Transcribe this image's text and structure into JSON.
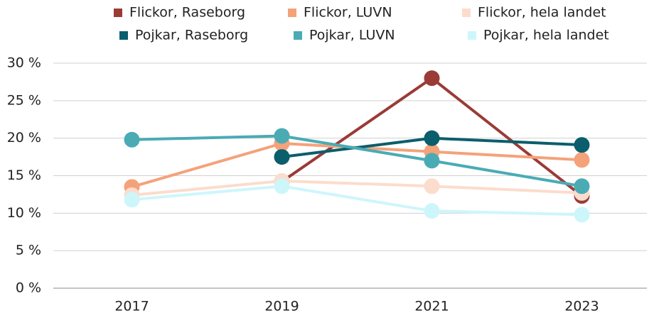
{
  "chart_data": {
    "type": "line",
    "categories": [
      "2017",
      "2019",
      "2021",
      "2023"
    ],
    "series": [
      {
        "name": "Flickor, Raseborg",
        "color": "#9a3b36",
        "values": [
          null,
          14.2,
          28.0,
          12.3
        ]
      },
      {
        "name": "Flickor, LUVN",
        "color": "#f4a27a",
        "values": [
          13.5,
          19.3,
          18.2,
          17.1
        ]
      },
      {
        "name": "Flickor, hela landet",
        "color": "#fcdccc",
        "values": [
          12.4,
          14.3,
          13.6,
          12.7
        ]
      },
      {
        "name": "Pojkar, Raseborg",
        "color": "#0b5e6b",
        "values": [
          null,
          17.5,
          20.0,
          19.1
        ]
      },
      {
        "name": "Pojkar, LUVN",
        "color": "#4aabb5",
        "values": [
          19.8,
          20.3,
          17.0,
          13.6
        ]
      },
      {
        "name": "Pojkar, hela landet",
        "color": "#cdf6fb",
        "values": [
          11.8,
          13.6,
          10.3,
          9.8
        ]
      }
    ],
    "ylim": [
      0,
      30
    ],
    "yticks": [
      {
        "value": 0,
        "label": "0 %"
      },
      {
        "value": 5,
        "label": "5 %"
      },
      {
        "value": 10,
        "label": "10 %"
      },
      {
        "value": 15,
        "label": "15 %"
      },
      {
        "value": 20,
        "label": "20 %"
      },
      {
        "value": 25,
        "label": "25 %"
      },
      {
        "value": 30,
        "label": "30 %"
      }
    ],
    "grid": true
  }
}
